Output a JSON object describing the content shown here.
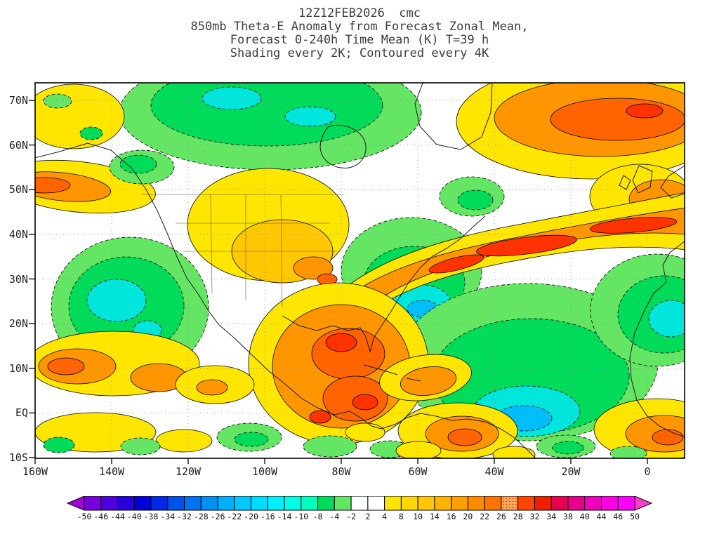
{
  "title": {
    "lines": [
      "12Z12FEB2026  cmc",
      "850mb Theta-E Anomaly from Forecast Zonal Mean,",
      "Forecast 0-240h Time Mean (K) T=39 h",
      "Shading every 2K; Contoured every 4K"
    ]
  },
  "chart_data": {
    "type": "heatmap",
    "variant": "filled-contour-anomaly-map",
    "model": "cmc",
    "init_time": "12Z12FEB2026",
    "field": "850mb Theta-E Anomaly from Forecast Zonal Mean",
    "forecast_span": "0-240h Time Mean (K) T=39 h",
    "shading_interval_K": 2,
    "contour_interval_K": 4,
    "grid": true,
    "x_axis": {
      "ticks": [
        "160W",
        "140W",
        "120W",
        "100W",
        "80W",
        "60W",
        "40W",
        "20W",
        "0"
      ]
    },
    "y_axis": {
      "ticks": [
        "70N",
        "60N",
        "50N",
        "40N",
        "30N",
        "20N",
        "10N",
        "EQ",
        "10S"
      ]
    },
    "colorbar": {
      "tick_labels": [
        "-50",
        "-46",
        "-44",
        "-40",
        "-38",
        "-34",
        "-32",
        "-28",
        "-26",
        "-22",
        "-20",
        "-16",
        "-14",
        "-10",
        "-8",
        "-4",
        "-2",
        "2",
        "4",
        "8",
        "10",
        "14",
        "16",
        "20",
        "22",
        "26",
        "28",
        "32",
        "34",
        "38",
        "40",
        "44",
        "46",
        "50"
      ],
      "colors": [
        "#A000DC",
        "#7800DC",
        "#5000DC",
        "#2800DC",
        "#0000DC",
        "#0028E6",
        "#0050EB",
        "#0073F0",
        "#0091F5",
        "#00AFFA",
        "#00C8FF",
        "#00DCFF",
        "#00F0FF",
        "#00FFE6",
        "#00FFBE",
        "#00DC5A",
        "#64E664",
        "#FFFFFF",
        "#FFFFFF",
        "#FFE600",
        "#FFD700",
        "#FFC800",
        "#FFB400",
        "#FFA000",
        "#FF8C00",
        "#FF7300",
        "#FFAA5A",
        "#FF4600",
        "#F01E00",
        "#E60050",
        "#E6008C",
        "#F000BE",
        "#FA00E1",
        "#FF00FF",
        "#FF3CC8"
      ],
      "stippled_segment_index": 25,
      "stipple_range": "26-28",
      "stipple_dot_color": "#E63200"
    },
    "palette": {
      "yellow": "#FFE600",
      "gold": "#FFC800",
      "orange": "#FF9600",
      "deep_orange": "#FF6400",
      "red_orange": "#FF3200",
      "green_light": "#64E664",
      "green": "#00DC5A",
      "cyan": "#00E6DC",
      "cyan_blue": "#00BEFA",
      "white": "#FFFFFF"
    },
    "features": [
      {
        "region": "central and northern Canada",
        "sign": "negative",
        "peak_K": -14
      },
      {
        "region": "Gulf of Alaska coast near 52N 160W",
        "sign": "positive",
        "peak_K": 18
      },
      {
        "region": "northeast Atlantic / northern Europe",
        "sign": "positive",
        "peak_K": 26
      },
      {
        "region": "North Atlantic storm track band 40-50N",
        "sign": "positive",
        "peak_K": 30
      },
      {
        "region": "eastern Pacific near 30N 140W",
        "sign": "negative",
        "peak_K": -12
      },
      {
        "region": "western Atlantic off New England",
        "sign": "negative",
        "peak_K": -22
      },
      {
        "region": "central US plains",
        "sign": "positive",
        "peak_K": 14
      },
      {
        "region": "Mexico / Central America / Caribbean",
        "sign": "positive",
        "peak_K": 34
      },
      {
        "region": "central tropical Atlantic near 10N 40W",
        "sign": "negative",
        "peak_K": -20
      },
      {
        "region": "northwest Africa near 20N",
        "sign": "negative",
        "peak_K": -14
      },
      {
        "region": "subtropical east Pacific 10-15N",
        "sign": "positive",
        "peak_K": 22
      },
      {
        "region": "northern South America",
        "sign": "positive",
        "peak_K": 20
      }
    ]
  }
}
